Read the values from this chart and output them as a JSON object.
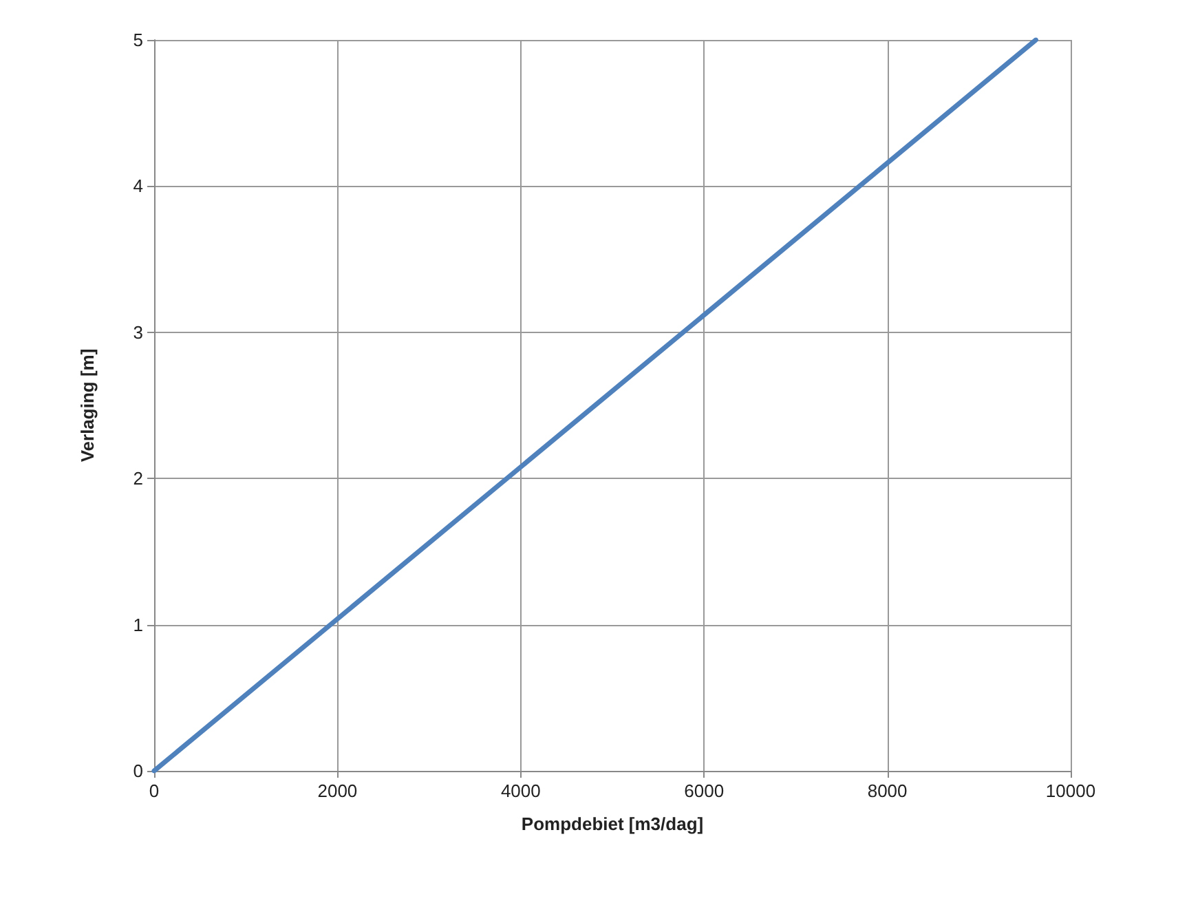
{
  "chart_data": {
    "type": "line",
    "xlabel": "Pompdebiet [m3/dag]",
    "ylabel": "Verlaging [m]",
    "x": [
      0,
      9620
    ],
    "series": [
      {
        "color": "#4f81bd",
        "values": [
          0,
          5
        ]
      }
    ],
    "xlim": [
      0,
      10000
    ],
    "xticks": [
      0,
      2000,
      4000,
      6000,
      8000,
      10000
    ],
    "ylim": [
      0,
      5
    ],
    "yticks": [
      0,
      1,
      2,
      3,
      4,
      5
    ],
    "grid": true,
    "marker": "none",
    "line_style": "solid"
  }
}
